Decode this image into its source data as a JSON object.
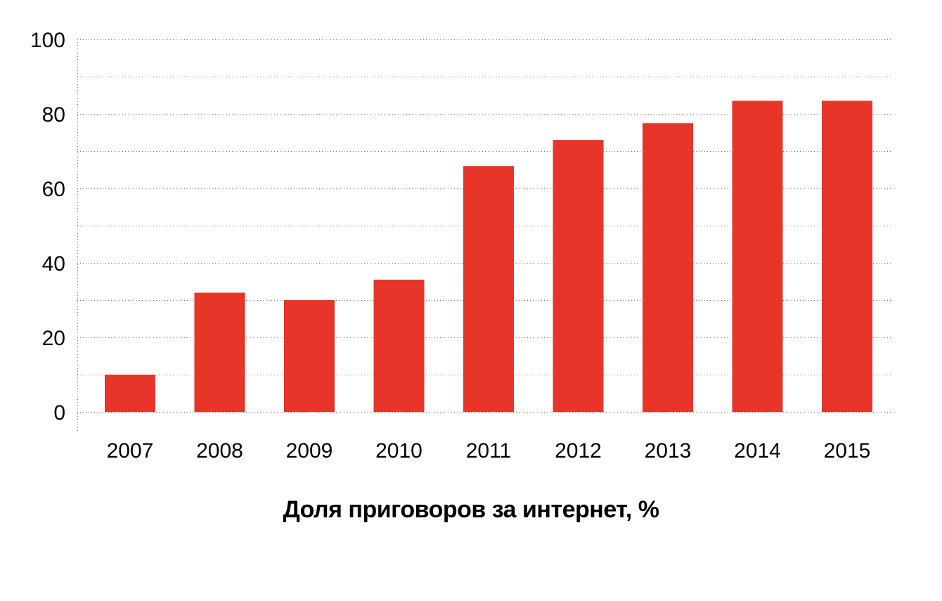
{
  "chart_data": {
    "type": "bar",
    "title": "Доля приговоров за интернет, %",
    "xlabel": "",
    "ylabel": "",
    "categories": [
      "2007",
      "2008",
      "2009",
      "2010",
      "2011",
      "2012",
      "2013",
      "2014",
      "2015"
    ],
    "values": [
      10,
      32,
      30,
      35.5,
      66,
      73,
      77.5,
      83.5,
      83.5
    ],
    "ylim": [
      0,
      100
    ],
    "yticks": [
      "0",
      "20",
      "40",
      "60",
      "80",
      "100"
    ],
    "minor_gridlines_every": 10,
    "grid": true,
    "grid_style": "dotted",
    "legend": "none",
    "bar_color": "#e8352a"
  }
}
